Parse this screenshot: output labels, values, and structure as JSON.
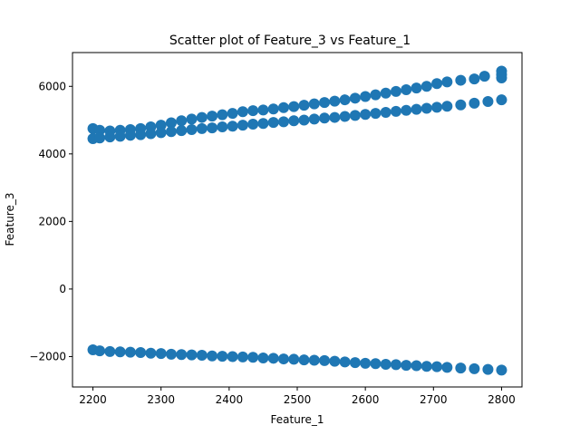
{
  "chart_data": {
    "type": "scatter",
    "title": "Scatter plot of Feature_3 vs Feature_1",
    "xlabel": "Feature_1",
    "ylabel": "Feature_3",
    "xlim": [
      2170,
      2830
    ],
    "ylim": [
      -2900,
      7000
    ],
    "xticks": [
      2200,
      2300,
      2400,
      2500,
      2600,
      2700,
      2800
    ],
    "yticks": [
      -2000,
      0,
      2000,
      4000,
      6000
    ],
    "grid": false,
    "marker_color": "#1f77b4",
    "series": [
      {
        "points": [
          {
            "x": 2200,
            "y": 4750
          },
          {
            "x": 2210,
            "y": 4700
          },
          {
            "x": 2225,
            "y": 4680
          },
          {
            "x": 2240,
            "y": 4700
          },
          {
            "x": 2255,
            "y": 4720
          },
          {
            "x": 2270,
            "y": 4750
          },
          {
            "x": 2285,
            "y": 4800
          },
          {
            "x": 2300,
            "y": 4850
          },
          {
            "x": 2315,
            "y": 4920
          },
          {
            "x": 2330,
            "y": 4980
          },
          {
            "x": 2345,
            "y": 5030
          },
          {
            "x": 2360,
            "y": 5080
          },
          {
            "x": 2375,
            "y": 5120
          },
          {
            "x": 2390,
            "y": 5160
          },
          {
            "x": 2405,
            "y": 5200
          },
          {
            "x": 2420,
            "y": 5250
          },
          {
            "x": 2435,
            "y": 5280
          },
          {
            "x": 2450,
            "y": 5300
          },
          {
            "x": 2465,
            "y": 5330
          },
          {
            "x": 2480,
            "y": 5370
          },
          {
            "x": 2495,
            "y": 5400
          },
          {
            "x": 2510,
            "y": 5440
          },
          {
            "x": 2525,
            "y": 5480
          },
          {
            "x": 2540,
            "y": 5520
          },
          {
            "x": 2555,
            "y": 5560
          },
          {
            "x": 2570,
            "y": 5600
          },
          {
            "x": 2585,
            "y": 5650
          },
          {
            "x": 2600,
            "y": 5700
          },
          {
            "x": 2615,
            "y": 5750
          },
          {
            "x": 2630,
            "y": 5800
          },
          {
            "x": 2645,
            "y": 5850
          },
          {
            "x": 2660,
            "y": 5900
          },
          {
            "x": 2675,
            "y": 5950
          },
          {
            "x": 2690,
            "y": 6000
          },
          {
            "x": 2705,
            "y": 6080
          },
          {
            "x": 2720,
            "y": 6130
          },
          {
            "x": 2740,
            "y": 6180
          },
          {
            "x": 2760,
            "y": 6220
          },
          {
            "x": 2775,
            "y": 6300
          },
          {
            "x": 2800,
            "y": 6450
          },
          {
            "x": 2800,
            "y": 6350
          },
          {
            "x": 2800,
            "y": 6250
          },
          {
            "x": 2200,
            "y": 4450
          },
          {
            "x": 2210,
            "y": 4470
          },
          {
            "x": 2225,
            "y": 4500
          },
          {
            "x": 2240,
            "y": 4520
          },
          {
            "x": 2255,
            "y": 4550
          },
          {
            "x": 2270,
            "y": 4570
          },
          {
            "x": 2285,
            "y": 4600
          },
          {
            "x": 2300,
            "y": 4630
          },
          {
            "x": 2315,
            "y": 4660
          },
          {
            "x": 2330,
            "y": 4690
          },
          {
            "x": 2345,
            "y": 4720
          },
          {
            "x": 2360,
            "y": 4750
          },
          {
            "x": 2375,
            "y": 4770
          },
          {
            "x": 2390,
            "y": 4800
          },
          {
            "x": 2405,
            "y": 4820
          },
          {
            "x": 2420,
            "y": 4850
          },
          {
            "x": 2435,
            "y": 4880
          },
          {
            "x": 2450,
            "y": 4900
          },
          {
            "x": 2465,
            "y": 4930
          },
          {
            "x": 2480,
            "y": 4950
          },
          {
            "x": 2495,
            "y": 4980
          },
          {
            "x": 2510,
            "y": 5000
          },
          {
            "x": 2525,
            "y": 5030
          },
          {
            "x": 2540,
            "y": 5060
          },
          {
            "x": 2555,
            "y": 5080
          },
          {
            "x": 2570,
            "y": 5110
          },
          {
            "x": 2585,
            "y": 5140
          },
          {
            "x": 2600,
            "y": 5170
          },
          {
            "x": 2615,
            "y": 5200
          },
          {
            "x": 2630,
            "y": 5230
          },
          {
            "x": 2645,
            "y": 5260
          },
          {
            "x": 2660,
            "y": 5290
          },
          {
            "x": 2675,
            "y": 5320
          },
          {
            "x": 2690,
            "y": 5350
          },
          {
            "x": 2705,
            "y": 5380
          },
          {
            "x": 2720,
            "y": 5410
          },
          {
            "x": 2740,
            "y": 5450
          },
          {
            "x": 2760,
            "y": 5500
          },
          {
            "x": 2780,
            "y": 5550
          },
          {
            "x": 2800,
            "y": 5600
          },
          {
            "x": 2200,
            "y": -1800
          },
          {
            "x": 2210,
            "y": -1830
          },
          {
            "x": 2225,
            "y": -1850
          },
          {
            "x": 2240,
            "y": -1860
          },
          {
            "x": 2255,
            "y": -1870
          },
          {
            "x": 2270,
            "y": -1880
          },
          {
            "x": 2285,
            "y": -1900
          },
          {
            "x": 2300,
            "y": -1910
          },
          {
            "x": 2315,
            "y": -1930
          },
          {
            "x": 2330,
            "y": -1940
          },
          {
            "x": 2345,
            "y": -1950
          },
          {
            "x": 2360,
            "y": -1960
          },
          {
            "x": 2375,
            "y": -1980
          },
          {
            "x": 2390,
            "y": -1990
          },
          {
            "x": 2405,
            "y": -2000
          },
          {
            "x": 2420,
            "y": -2010
          },
          {
            "x": 2435,
            "y": -2020
          },
          {
            "x": 2450,
            "y": -2040
          },
          {
            "x": 2465,
            "y": -2050
          },
          {
            "x": 2480,
            "y": -2070
          },
          {
            "x": 2495,
            "y": -2080
          },
          {
            "x": 2510,
            "y": -2100
          },
          {
            "x": 2525,
            "y": -2110
          },
          {
            "x": 2540,
            "y": -2120
          },
          {
            "x": 2555,
            "y": -2140
          },
          {
            "x": 2570,
            "y": -2160
          },
          {
            "x": 2585,
            "y": -2180
          },
          {
            "x": 2600,
            "y": -2200
          },
          {
            "x": 2615,
            "y": -2210
          },
          {
            "x": 2630,
            "y": -2230
          },
          {
            "x": 2645,
            "y": -2240
          },
          {
            "x": 2660,
            "y": -2260
          },
          {
            "x": 2675,
            "y": -2270
          },
          {
            "x": 2690,
            "y": -2290
          },
          {
            "x": 2705,
            "y": -2300
          },
          {
            "x": 2720,
            "y": -2320
          },
          {
            "x": 2740,
            "y": -2340
          },
          {
            "x": 2760,
            "y": -2360
          },
          {
            "x": 2780,
            "y": -2380
          },
          {
            "x": 2800,
            "y": -2400
          }
        ]
      }
    ]
  }
}
